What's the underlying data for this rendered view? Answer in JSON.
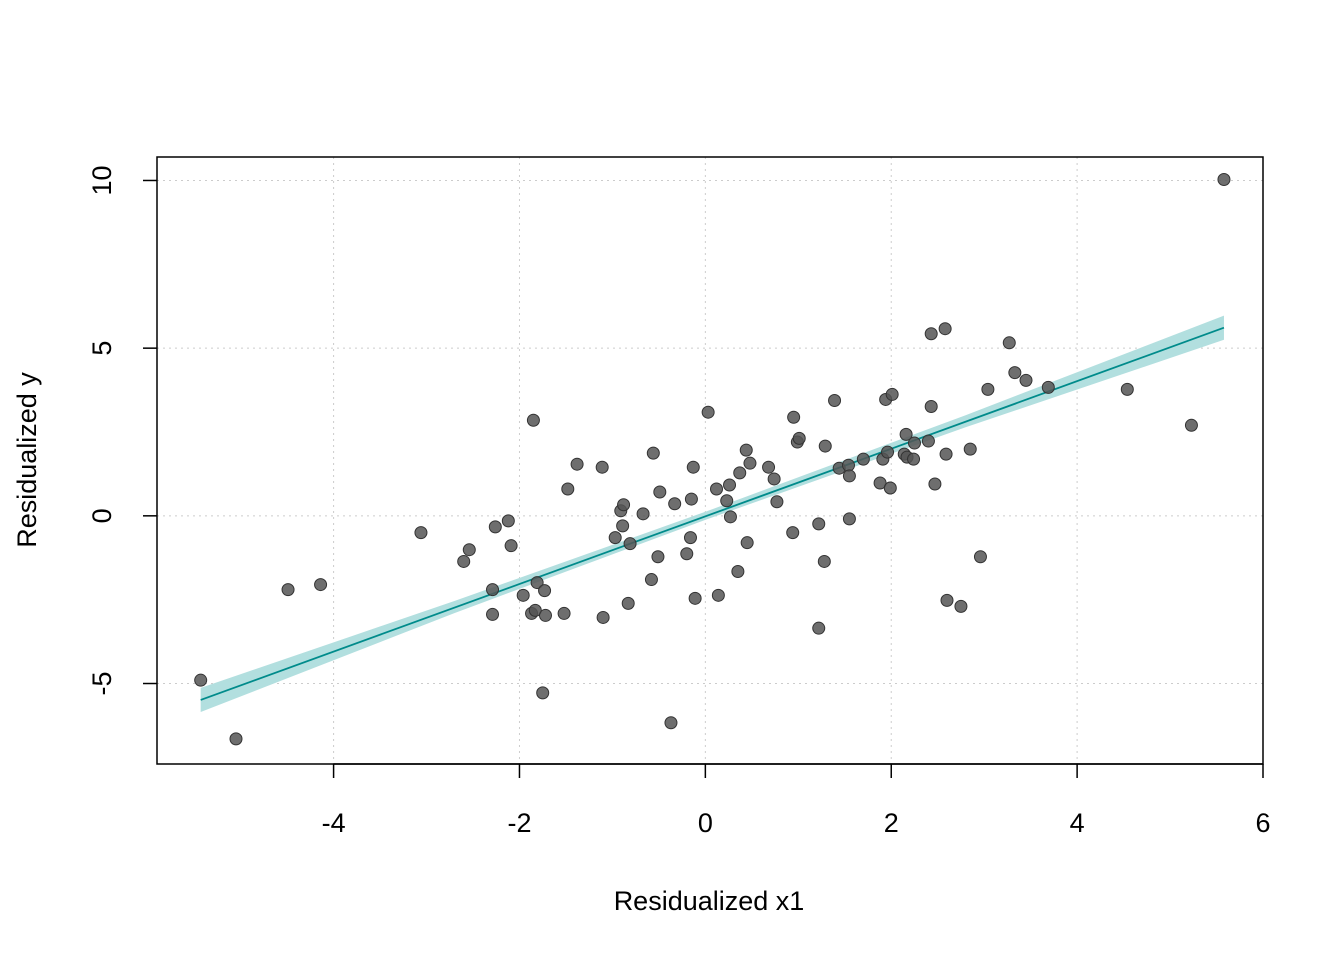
{
  "chart_data": {
    "type": "scatter",
    "title": "",
    "xlabel": "Residualized x1",
    "ylabel": "Residualized y",
    "xlim": [
      -5.9,
      6.0
    ],
    "ylim": [
      -7.4,
      10.7
    ],
    "xticks": [
      -4,
      -2,
      0,
      2,
      4,
      6
    ],
    "yticks": [
      -5,
      0,
      5,
      10
    ],
    "grid": true,
    "colors": {
      "points": "#555555",
      "line": "#008B8B",
      "band": "#B2DFDF",
      "grid": "#CCCCCC"
    },
    "points": [
      [
        -5.43,
        -4.9
      ],
      [
        -5.05,
        -6.65
      ],
      [
        -4.49,
        -2.2
      ],
      [
        -4.14,
        -2.05
      ],
      [
        -3.06,
        -0.5
      ],
      [
        -2.6,
        -1.36
      ],
      [
        -2.54,
        -1.01
      ],
      [
        -2.29,
        -2.2
      ],
      [
        -2.29,
        -2.94
      ],
      [
        -2.26,
        -0.33
      ],
      [
        -2.12,
        -0.15
      ],
      [
        -2.09,
        -0.89
      ],
      [
        -1.96,
        -2.37
      ],
      [
        -1.87,
        -2.91
      ],
      [
        -1.85,
        2.85
      ],
      [
        -1.83,
        -2.82
      ],
      [
        -1.81,
        -1.99
      ],
      [
        -1.75,
        -5.28
      ],
      [
        -1.73,
        -2.23
      ],
      [
        -1.72,
        -2.97
      ],
      [
        -1.52,
        -2.91
      ],
      [
        -1.48,
        0.8
      ],
      [
        -1.38,
        1.54
      ],
      [
        -1.11,
        1.45
      ],
      [
        -1.1,
        -3.03
      ],
      [
        -0.97,
        -0.65
      ],
      [
        -0.91,
        0.15
      ],
      [
        -0.88,
        0.33
      ],
      [
        -0.89,
        -0.3
      ],
      [
        -0.83,
        -2.61
      ],
      [
        -0.81,
        -0.83
      ],
      [
        -0.67,
        0.06
      ],
      [
        -0.58,
        -1.9
      ],
      [
        -0.56,
        1.87
      ],
      [
        -0.51,
        -1.22
      ],
      [
        -0.49,
        0.71
      ],
      [
        -0.37,
        -6.17
      ],
      [
        -0.33,
        0.36
      ],
      [
        -0.2,
        -1.13
      ],
      [
        -0.16,
        -0.65
      ],
      [
        -0.15,
        0.5
      ],
      [
        -0.13,
        1.45
      ],
      [
        -0.11,
        -2.46
      ],
      [
        0.03,
        3.09
      ],
      [
        0.12,
        0.8
      ],
      [
        0.14,
        -2.37
      ],
      [
        0.23,
        0.45
      ],
      [
        0.26,
        0.92
      ],
      [
        0.27,
        -0.03
      ],
      [
        0.35,
        -1.66
      ],
      [
        0.37,
        1.28
      ],
      [
        0.44,
        1.96
      ],
      [
        0.45,
        -0.8
      ],
      [
        0.48,
        1.57
      ],
      [
        0.68,
        1.45
      ],
      [
        0.74,
        1.1
      ],
      [
        0.77,
        0.42
      ],
      [
        0.94,
        -0.5
      ],
      [
        0.95,
        2.94
      ],
      [
        0.99,
        2.2
      ],
      [
        1.01,
        2.31
      ],
      [
        1.22,
        -0.24
      ],
      [
        1.22,
        -3.35
      ],
      [
        1.28,
        -1.36
      ],
      [
        1.29,
        2.08
      ],
      [
        1.39,
        3.44
      ],
      [
        1.44,
        1.42
      ],
      [
        1.54,
        1.51
      ],
      [
        1.55,
        1.19
      ],
      [
        1.55,
        -0.09
      ],
      [
        1.7,
        1.69
      ],
      [
        1.88,
        0.98
      ],
      [
        1.91,
        1.69
      ],
      [
        1.94,
        3.47
      ],
      [
        1.96,
        1.9
      ],
      [
        1.99,
        0.83
      ],
      [
        2.01,
        3.62
      ],
      [
        2.14,
        1.84
      ],
      [
        2.16,
        2.43
      ],
      [
        2.17,
        1.75
      ],
      [
        2.24,
        1.69
      ],
      [
        2.25,
        2.17
      ],
      [
        2.4,
        2.23
      ],
      [
        2.43,
        5.43
      ],
      [
        2.43,
        3.26
      ],
      [
        2.47,
        0.95
      ],
      [
        2.58,
        5.58
      ],
      [
        2.59,
        1.84
      ],
      [
        2.6,
        -2.52
      ],
      [
        2.75,
        -2.7
      ],
      [
        2.85,
        1.99
      ],
      [
        2.96,
        -1.22
      ],
      [
        3.04,
        3.77
      ],
      [
        3.27,
        5.16
      ],
      [
        3.33,
        4.27
      ],
      [
        3.45,
        4.04
      ],
      [
        3.69,
        3.83
      ],
      [
        4.54,
        3.77
      ],
      [
        5.23,
        2.7
      ],
      [
        5.58,
        10.03
      ]
    ],
    "fit_line": {
      "x": [
        -5.43,
        5.58
      ],
      "y": [
        -5.49,
        5.61
      ]
    },
    "confidence_band": {
      "x": [
        -5.43,
        -2.7,
        0,
        2.8,
        5.58
      ],
      "lower": [
        -5.85,
        -2.9,
        -0.12,
        2.64,
        5.25
      ],
      "upper": [
        -5.13,
        -2.54,
        0.12,
        3.0,
        5.97
      ]
    }
  }
}
